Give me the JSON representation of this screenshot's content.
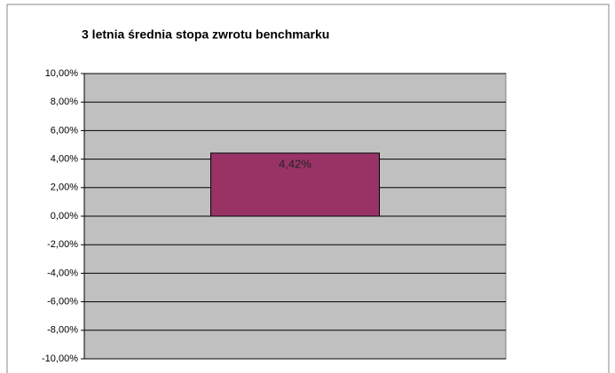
{
  "chart_data": {
    "type": "bar",
    "title": "3 letnia średnia stopa zwrotu benchmarku",
    "categories": [
      null
    ],
    "values": [
      4.42
    ],
    "value_labels": [
      "4,42%"
    ],
    "color": "#993366",
    "ylim": [
      -10,
      10
    ],
    "yticks": [
      {
        "value": 10,
        "label": "10,00%"
      },
      {
        "value": 8,
        "label": "8,00%"
      },
      {
        "value": 6,
        "label": "6,00%"
      },
      {
        "value": 4,
        "label": "4,00%"
      },
      {
        "value": 2,
        "label": "2,00%"
      },
      {
        "value": 0,
        "label": "0,00%"
      },
      {
        "value": -2,
        "label": "-2,00%"
      },
      {
        "value": -4,
        "label": "-4,00%"
      },
      {
        "value": -6,
        "label": "-6,00%"
      },
      {
        "value": -8,
        "label": "-8,00%"
      },
      {
        "value": -10,
        "label": "-10,00%"
      }
    ],
    "grid": true
  }
}
